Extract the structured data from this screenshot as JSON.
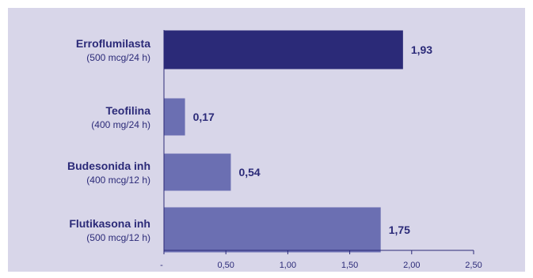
{
  "chart_data": {
    "type": "bar",
    "orientation": "horizontal",
    "categories": [
      {
        "name": "Erroflumilasta",
        "dose": "(500 mcg/24 h)"
      },
      {
        "name": "Teofilina",
        "dose": "(400 mg/24 h)"
      },
      {
        "name": "Budesonida inh",
        "dose": "(400 mcg/12 h)"
      },
      {
        "name": "Flutikasona inh",
        "dose": "(500 mcg/12 h)"
      }
    ],
    "values": [
      1.93,
      0.17,
      0.54,
      1.75
    ],
    "value_labels": [
      "1,93",
      "0,17",
      "0,54",
      "1,75"
    ],
    "xlim": [
      0,
      2.5
    ],
    "x_ticks": [
      0,
      0.5,
      1.0,
      1.5,
      2.0,
      2.5
    ],
    "x_tick_labels": [
      "-",
      "0,50",
      "1,00",
      "1,50",
      "2,00",
      "2,50"
    ],
    "grid": false,
    "title": "",
    "xlabel": "",
    "ylabel": ""
  },
  "colors": {
    "panel_background": "#d8d6e9",
    "highlight_bar": "#2b2a78",
    "other_bars": "#6b6fb2",
    "axis": "#2b2a78",
    "text": "#2b2a78"
  }
}
